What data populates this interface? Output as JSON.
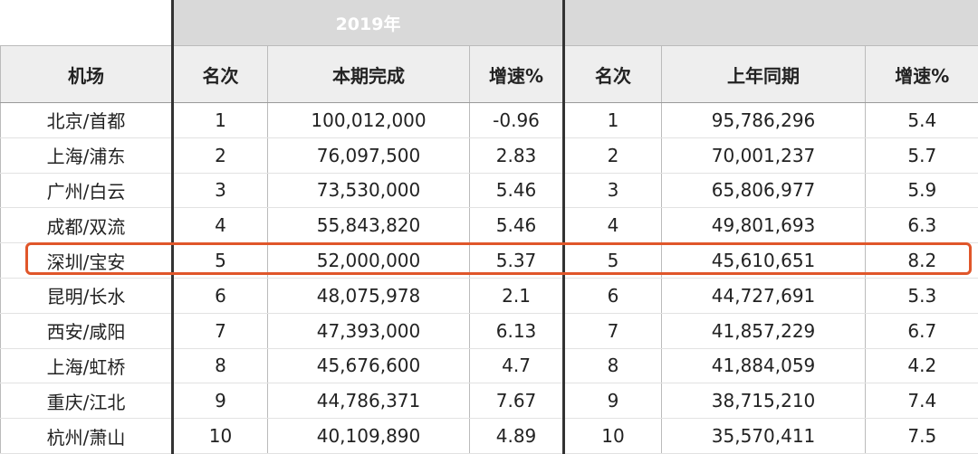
{
  "header": {
    "title": "2019年"
  },
  "table": {
    "columns": [
      "机场",
      "名次",
      "本期完成",
      "增速%",
      "名次",
      "上年同期",
      "增速%"
    ],
    "rows": [
      [
        "北京/首都",
        "1",
        "100,012,000",
        "-0.96",
        "1",
        "95,786,296",
        "5.4"
      ],
      [
        "上海/浦东",
        "2",
        "76,097,500",
        "2.83",
        "2",
        "70,001,237",
        "5.7"
      ],
      [
        "广州/白云",
        "3",
        "73,530,000",
        "5.46",
        "3",
        "65,806,977",
        "5.9"
      ],
      [
        "成都/双流",
        "4",
        "55,843,820",
        "5.46",
        "4",
        "49,801,693",
        "6.3"
      ],
      [
        "深圳/宝安",
        "5",
        "52,000,000",
        "5.37",
        "5",
        "45,610,651",
        "8.2"
      ],
      [
        "昆明/长水",
        "6",
        "48,075,978",
        "2.1",
        "6",
        "44,727,691",
        "5.3"
      ],
      [
        "西安/咸阳",
        "7",
        "47,393,000",
        "6.13",
        "7",
        "41,857,229",
        "6.7"
      ],
      [
        "上海/虹桥",
        "8",
        "45,676,600",
        "4.7",
        "8",
        "41,884,059",
        "4.2"
      ],
      [
        "重庆/江北",
        "9",
        "44,786,371",
        "7.67",
        "9",
        "38,715,210",
        "7.4"
      ],
      [
        "杭州/萧山",
        "10",
        "40,109,890",
        "4.89",
        "10",
        "35,570,411",
        "7.5"
      ]
    ]
  }
}
